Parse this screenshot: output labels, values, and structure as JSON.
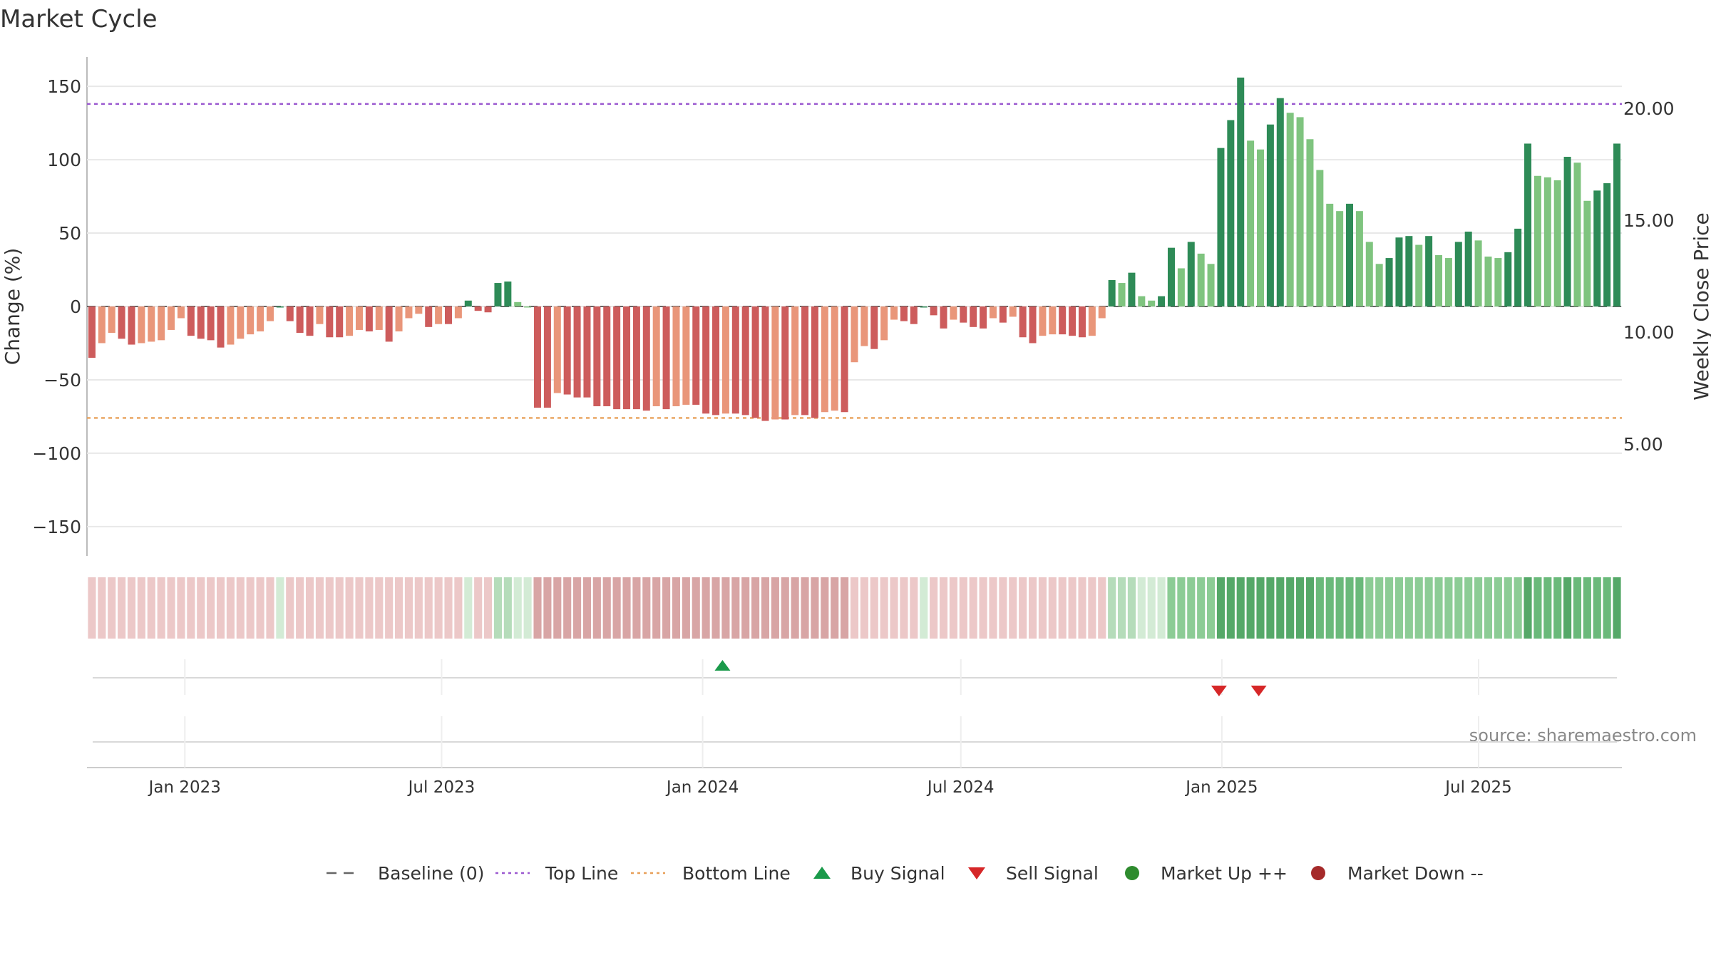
{
  "chart_data": {
    "type": "bar",
    "title": "Market Cycle",
    "ylabel": "Change (%)",
    "y2label": "Weekly Close Price",
    "ylim": [
      -170,
      170
    ],
    "y2lim": [
      0,
      22.3
    ],
    "yticks": [
      150,
      100,
      50,
      0,
      -50,
      -100,
      -150
    ],
    "ytick_labels": [
      "150",
      "100",
      "50",
      "0",
      "−50",
      "−100",
      "−150"
    ],
    "y2ticks": [
      20,
      15,
      10,
      5
    ],
    "y2tick_labels": [
      "20.00",
      "15.00",
      "10.00",
      "5.00"
    ],
    "x_range": [
      "2022-10-24",
      "2025-10-10"
    ],
    "x_ticks": [
      {
        "date": "2023-01-01",
        "label": "Jan 2023"
      },
      {
        "date": "2023-07-01",
        "label": "Jul 2023"
      },
      {
        "date": "2024-01-01",
        "label": "Jan 2024"
      },
      {
        "date": "2024-07-01",
        "label": "Jul 2024"
      },
      {
        "date": "2025-01-01",
        "label": "Jan 2025"
      },
      {
        "date": "2025-07-01",
        "label": "Jul 2025"
      }
    ],
    "first_week": "2022-10-24",
    "top_line": 138,
    "bottom_line": -76,
    "grid": true,
    "legend_position": "bottom",
    "values": [
      -35,
      -25,
      -18,
      -22,
      -26,
      -25,
      -24,
      -23,
      -16,
      -8,
      -20,
      -22,
      -23,
      -28,
      -26,
      -22,
      -19,
      -17,
      -10,
      0,
      -10,
      -18,
      -20,
      -12,
      -21,
      -21,
      -20,
      -16,
      -17,
      -16,
      -24,
      -17,
      -8,
      -5,
      -14,
      -12,
      -12,
      -8,
      4,
      -3,
      -4,
      16,
      17,
      3,
      0,
      -69,
      -69,
      -59,
      -60,
      -62,
      -62,
      -68,
      -68,
      -70,
      -70,
      -70,
      -71,
      -68,
      -70,
      -68,
      -67,
      -67,
      -73,
      -74,
      -73,
      -73,
      -74,
      -76,
      -78,
      -77,
      -77,
      -74,
      -74,
      -76,
      -72,
      -71,
      -72,
      -38,
      -27,
      -29,
      -23,
      -9,
      -10,
      -12,
      0,
      -6,
      -15,
      -9,
      -11,
      -14,
      -15,
      -8,
      -11,
      -7,
      -21,
      -25,
      -20,
      -19,
      -19,
      -20,
      -21,
      -20,
      -8,
      18,
      16,
      23,
      7,
      4,
      7,
      40,
      26,
      44,
      36,
      29,
      108,
      127,
      156,
      113,
      107,
      124,
      142,
      132,
      129,
      114,
      93,
      70,
      65,
      70,
      65,
      44,
      29,
      33,
      47,
      48,
      42,
      48,
      35,
      33,
      44,
      51,
      45,
      34,
      33,
      37,
      53,
      111,
      89,
      88,
      86,
      102,
      98,
      72,
      79,
      84,
      111
    ],
    "bar_colors": {
      "strong_up": "#2e8b57",
      "mild_up": "#7fc47f",
      "strong_down": "#cd5c5c",
      "mild_down": "#e9967a"
    },
    "signals": [
      {
        "type": "buy",
        "date": "2024-01-15"
      },
      {
        "type": "sell",
        "date": "2024-12-30"
      },
      {
        "type": "sell",
        "date": "2025-01-27"
      }
    ],
    "series": [
      {
        "name": "Baseline (0)",
        "style": "dashed",
        "color": "#666666"
      },
      {
        "name": "Top Line",
        "style": "dotted",
        "color": "#9b59d0"
      },
      {
        "name": "Bottom Line",
        "style": "dotted",
        "color": "#e8a05a"
      },
      {
        "name": "Buy Signal",
        "marker": "triangle-up",
        "color": "#1a9a4a"
      },
      {
        "name": "Sell Signal",
        "marker": "triangle-down",
        "color": "#d62728"
      },
      {
        "name": "Market Up ++",
        "marker": "circle",
        "color": "#2e8b2e"
      },
      {
        "name": "Market Down --",
        "marker": "circle",
        "color": "#a52a2a"
      }
    ],
    "source": "source: sharemaestro.com"
  }
}
